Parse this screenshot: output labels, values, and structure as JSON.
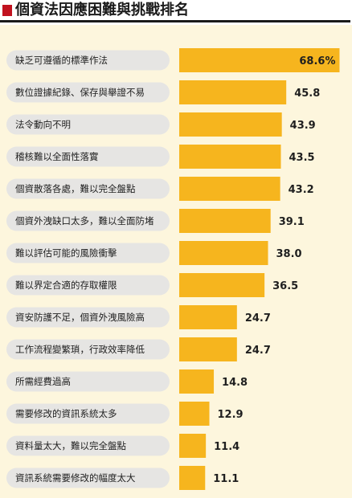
{
  "title": "個資法因應困難與挑戰排名",
  "colors": {
    "accent": "#c1121f",
    "bar": "#f6b51e",
    "pill": "#e6e5e3",
    "background": "#fdf6dd"
  },
  "chart_data": {
    "type": "bar",
    "orientation": "horizontal",
    "title": "個資法因應困難與挑戰排名",
    "unit": "%",
    "categories": [
      "缺乏可遵循的標準作法",
      "數位證據紀錄、保存與舉證不易",
      "法令動向不明",
      "稽核難以全面性落實",
      "個資散落各處，難以完全盤點",
      "個資外洩缺口太多，難以全面防堵",
      "難以評估可能的風險衝擊",
      "難以界定合適的存取權限",
      "資安防護不足，個資外洩風險高",
      "工作流程變繁瑣，行政效率降低",
      "所需經費過高",
      "需要修改的資訊系統太多",
      "資料量太大，難以完全盤點",
      "資訊系統需要修改的幅度太大"
    ],
    "values": [
      68.6,
      45.8,
      43.9,
      43.5,
      43.2,
      39.1,
      38.0,
      36.5,
      24.7,
      24.7,
      14.8,
      12.9,
      11.4,
      11.1
    ],
    "value_labels": [
      "68.6%",
      "45.8",
      "43.9",
      "43.5",
      "43.2",
      "39.1",
      "38.0",
      "36.5",
      "24.7",
      "24.7",
      "14.8",
      "12.9",
      "11.4",
      "11.1"
    ],
    "xlim": [
      0,
      70
    ]
  }
}
